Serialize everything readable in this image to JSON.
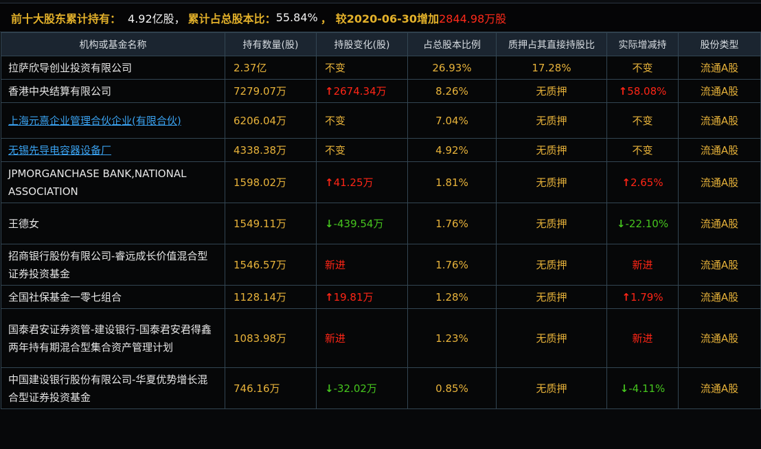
{
  "summary": {
    "label1": "前十大股东累计持有：",
    "total_shares": "4.92亿股",
    "sep1": "，",
    "label2": "累计占总股本比：",
    "total_ratio": "55.84%",
    "sep2": " ，",
    "label3": "较2020-06-30增加",
    "increase": "2844.98万股"
  },
  "table": {
    "headers": [
      "机构或基金名称",
      "持有数量(股)",
      "持股变化(股)",
      "占总股本比例",
      "质押占其直接持股比",
      "实际增减持",
      "股份类型"
    ],
    "rows": [
      {
        "name": "拉萨欣导创业投资有限公司",
        "link": false,
        "shares": "2.37亿",
        "change": "不变",
        "change_dir": "none",
        "ratio": "26.93%",
        "pledge": "17.28%",
        "actual": "不变",
        "actual_dir": "none",
        "type": "流通A股"
      },
      {
        "name": "香港中央结算有限公司",
        "link": false,
        "shares": "7279.07万",
        "change": "2674.34万",
        "change_dir": "up",
        "ratio": "8.26%",
        "pledge": "无质押",
        "actual": "58.08%",
        "actual_dir": "up",
        "type": "流通A股"
      },
      {
        "name": "上海元熹企业管理合伙企业(有限合伙)",
        "link": true,
        "shares": "6206.04万",
        "change": "不变",
        "change_dir": "none",
        "ratio": "7.04%",
        "pledge": "无质押",
        "actual": "不变",
        "actual_dir": "none",
        "type": "流通A股"
      },
      {
        "name": "无锡先导电容器设备厂",
        "link": true,
        "shares": "4338.38万",
        "change": "不变",
        "change_dir": "none",
        "ratio": "4.92%",
        "pledge": "无质押",
        "actual": "不变",
        "actual_dir": "none",
        "type": "流通A股"
      },
      {
        "name": "JPMORGANCHASE BANK,NATIONAL ASSOCIATION",
        "link": false,
        "shares": "1598.02万",
        "change": "41.25万",
        "change_dir": "up",
        "ratio": "1.81%",
        "pledge": "无质押",
        "actual": "2.65%",
        "actual_dir": "up",
        "type": "流通A股"
      },
      {
        "name": "王德女",
        "link": false,
        "shares": "1549.11万",
        "change": "-439.54万",
        "change_dir": "down",
        "ratio": "1.76%",
        "pledge": "无质押",
        "actual": "-22.10%",
        "actual_dir": "down",
        "type": "流通A股"
      },
      {
        "name": "招商银行股份有限公司-睿远成长价值混合型证券投资基金",
        "link": false,
        "shares": "1546.57万",
        "change": "新进",
        "change_dir": "new",
        "ratio": "1.76%",
        "pledge": "无质押",
        "actual": "新进",
        "actual_dir": "new",
        "type": "流通A股"
      },
      {
        "name": "全国社保基金一零七组合",
        "link": false,
        "shares": "1128.14万",
        "change": "19.81万",
        "change_dir": "up",
        "ratio": "1.28%",
        "pledge": "无质押",
        "actual": "1.79%",
        "actual_dir": "up",
        "type": "流通A股"
      },
      {
        "name": "国泰君安证券资管-建设银行-国泰君安君得鑫两年持有期混合型集合资产管理计划",
        "link": false,
        "shares": "1083.98万",
        "change": "新进",
        "change_dir": "new",
        "ratio": "1.23%",
        "pledge": "无质押",
        "actual": "新进",
        "actual_dir": "new",
        "type": "流通A股"
      },
      {
        "name": "中国建设银行股份有限公司-华夏优势增长混合型证券投资基金",
        "link": false,
        "shares": "746.16万",
        "change": "-32.02万",
        "change_dir": "down",
        "ratio": "0.85%",
        "pledge": "无质押",
        "actual": "-4.11%",
        "actual_dir": "down",
        "type": "流通A股"
      }
    ]
  },
  "icons": {
    "up": "↑",
    "down": "↓"
  },
  "colors": {
    "gold": "#e3b12a",
    "up": "#ff2516",
    "down": "#46c51e",
    "link": "#3aa2f0"
  }
}
